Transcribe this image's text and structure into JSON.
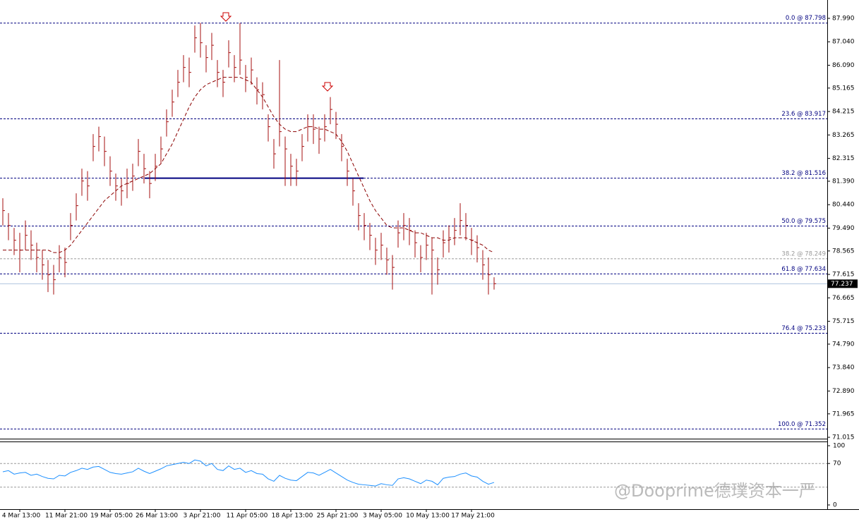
{
  "chart_data": {
    "type": "ohlc",
    "categories": [
      null,
      null,
      null,
      "4 Mar 13:00",
      null,
      null,
      null,
      null,
      null,
      null,
      null,
      "11 Mar 21:00",
      null,
      null,
      null,
      null,
      null,
      null,
      null,
      "19 Mar 05:00",
      null,
      null,
      null,
      null,
      null,
      null,
      null,
      "26 Mar 13:00",
      null,
      null,
      null,
      null,
      null,
      null,
      null,
      "3 Apr 21:00",
      null,
      null,
      null,
      null,
      null,
      null,
      null,
      "11 Apr 05:00",
      null,
      null,
      null,
      null,
      null,
      null,
      null,
      "18 Apr 13:00",
      null,
      null,
      null,
      null,
      null,
      null,
      null,
      "25 Apr 21:00",
      null,
      null,
      null,
      null,
      null,
      null,
      null,
      "3 May 05:00",
      null,
      null,
      null,
      null,
      null,
      null,
      null,
      "10 May 13:00",
      null,
      null,
      null,
      null,
      null,
      null,
      null,
      "17 May 21:00",
      null,
      null,
      null,
      null
    ],
    "high": [
      80.7,
      80.1,
      79.5,
      79.3,
      79.8,
      79.4,
      78.9,
      78.6,
      78.2,
      78.0,
      78.8,
      78.7,
      80.1,
      80.9,
      81.9,
      81.8,
      83.3,
      83.6,
      83.2,
      82.4,
      81.7,
      81.5,
      81.9,
      82.1,
      83.1,
      82.5,
      81.8,
      82.5,
      83.2,
      84.3,
      85.1,
      85.9,
      86.5,
      86.4,
      87.7,
      87.8,
      86.9,
      87.4,
      86.3,
      85.9,
      87.1,
      86.5,
      87.8,
      86.1,
      86.4,
      85.6,
      85.4,
      84.1,
      83.1,
      86.3,
      83.2,
      82.5,
      82.3,
      83.3,
      84.1,
      84.1,
      83.6,
      84.1,
      84.8,
      84.2,
      83.3,
      82.3,
      81.5,
      80.5,
      80.1,
      79.7,
      79.1,
      79.3,
      78.7,
      78.4,
      79.8,
      80.1,
      79.9,
      79.4,
      78.8,
      79.3,
      79.1,
      78.3,
      79.4,
      79.6,
      79.9,
      80.5,
      80.1,
      79.5,
      79.2,
      78.6,
      78.3,
      77.5
    ],
    "low": [
      79.6,
      79.0,
      78.4,
      77.7,
      78.6,
      78.2,
      77.7,
      77.4,
      76.9,
      76.8,
      77.7,
      77.5,
      79.0,
      79.8,
      80.8,
      80.6,
      82.2,
      82.6,
      82.0,
      81.2,
      80.6,
      80.4,
      80.7,
      81.0,
      82.0,
      81.3,
      80.7,
      81.4,
      82.1,
      83.2,
      84.0,
      84.8,
      85.4,
      85.2,
      86.6,
      86.4,
      85.8,
      86.3,
      85.2,
      84.8,
      86.0,
      85.4,
      85.7,
      85.0,
      85.3,
      84.5,
      84.3,
      83.0,
      81.9,
      82.8,
      81.2,
      81.2,
      81.2,
      82.2,
      83.0,
      82.9,
      82.5,
      83.0,
      83.7,
      83.1,
      82.2,
      81.2,
      80.4,
      79.4,
      79.0,
      78.6,
      78.0,
      78.2,
      77.6,
      77.0,
      78.7,
      79.0,
      78.8,
      78.3,
      77.7,
      78.2,
      76.8,
      77.2,
      78.3,
      78.5,
      78.8,
      79.2,
      79.0,
      78.4,
      78.1,
      77.4,
      76.8,
      77.0
    ],
    "close": [
      80.2,
      79.6,
      79.0,
      78.6,
      79.2,
      78.8,
      78.3,
      78.0,
      77.6,
      77.4,
      78.3,
      78.1,
      79.6,
      80.4,
      81.4,
      81.2,
      82.8,
      83.2,
      82.6,
      81.8,
      81.2,
      81.0,
      81.3,
      81.6,
      82.6,
      81.9,
      81.3,
      82.0,
      82.7,
      83.8,
      84.6,
      85.4,
      86.0,
      85.8,
      87.2,
      87.0,
      86.4,
      86.9,
      85.8,
      85.4,
      86.6,
      86.0,
      86.3,
      85.6,
      85.9,
      85.1,
      84.9,
      83.6,
      82.5,
      83.4,
      82.7,
      82.0,
      81.8,
      82.8,
      83.6,
      83.5,
      83.1,
      83.6,
      84.3,
      83.7,
      82.8,
      81.8,
      81.0,
      80.0,
      79.6,
      79.2,
      78.6,
      78.8,
      78.2,
      77.9,
      79.3,
      79.6,
      79.4,
      78.9,
      78.3,
      78.8,
      78.6,
      77.8,
      78.9,
      79.1,
      79.4,
      79.8,
      79.6,
      79.0,
      78.7,
      78.0,
      77.6,
      77.24
    ],
    "bar_color": "#a50f0f",
    "ma": [
      78.6,
      78.6,
      78.6,
      78.6,
      78.6,
      78.6,
      78.6,
      78.6,
      78.6,
      78.5,
      78.5,
      78.6,
      78.8,
      79.1,
      79.4,
      79.7,
      80.0,
      80.3,
      80.6,
      80.8,
      81.0,
      81.2,
      81.3,
      81.4,
      81.5,
      81.6,
      81.7,
      81.9,
      82.1,
      82.5,
      82.9,
      83.4,
      83.9,
      84.4,
      84.8,
      85.1,
      85.3,
      85.4,
      85.5,
      85.6,
      85.6,
      85.6,
      85.6,
      85.5,
      85.4,
      85.1,
      84.8,
      84.4,
      84.0,
      83.7,
      83.5,
      83.4,
      83.4,
      83.5,
      83.6,
      83.6,
      83.5,
      83.5,
      83.4,
      83.3,
      83.0,
      82.6,
      82.1,
      81.6,
      81.1,
      80.6,
      80.2,
      79.9,
      79.6,
      79.5,
      79.5,
      79.5,
      79.4,
      79.3,
      79.3,
      79.2,
      79.1,
      79.1,
      79.0,
      79.0,
      79.1,
      79.1,
      79.1,
      79.0,
      78.9,
      78.8,
      78.6,
      78.5
    ],
    "ma_color": "#8b0000",
    "ylim": [
      70.96,
      88.59
    ],
    "yticks": [
      {
        "value": 87.99,
        "label": "87.990"
      },
      {
        "value": 87.04,
        "label": "87.040"
      },
      {
        "value": 86.09,
        "label": "86.090"
      },
      85.165,
      84.215,
      83.265,
      82.315,
      {
        "value": 81.39,
        "label": "81.390"
      },
      {
        "value": 80.44,
        "label": "80.440"
      },
      {
        "value": 79.49,
        "label": "79.490"
      },
      78.565,
      77.615,
      76.665,
      75.715,
      {
        "value": 74.79,
        "label": "74.790"
      },
      {
        "value": 73.84,
        "label": "73.840"
      },
      {
        "value": 72.89,
        "label": "72.890"
      },
      71.965,
      71.015
    ],
    "fib": [
      {
        "label": "0.0 @ 87.798",
        "value": 87.798,
        "color": "#000080"
      },
      {
        "label": "23.6 @ 83.917",
        "value": 83.917,
        "color": "#000080"
      },
      {
        "label": "38.2 @ 81.516",
        "value": 81.516,
        "color": "#000080"
      },
      {
        "label": "50.0 @ 79.575",
        "value": 79.575,
        "color": "#000080"
      },
      {
        "label": "38.2 @ 78.249",
        "value": 78.249,
        "color": "#9a9a9a"
      },
      {
        "label": "61.8 @ 77.634",
        "value": 77.634,
        "color": "#000080"
      },
      {
        "label": "76.4 @ 75.233",
        "value": 75.233,
        "color": "#000080"
      },
      {
        "label": "100.0 @ 71.352",
        "value": 71.352,
        "color": "#000080"
      }
    ],
    "current_price": {
      "label": "77.237",
      "value": 77.237
    },
    "rsi": {
      "values": [
        56,
        58,
        52,
        54,
        55,
        50,
        52,
        48,
        45,
        44,
        50,
        49,
        55,
        58,
        62,
        60,
        64,
        65,
        60,
        55,
        53,
        52,
        54,
        56,
        62,
        57,
        53,
        57,
        61,
        66,
        68,
        70,
        72,
        70,
        76,
        74,
        66,
        70,
        60,
        58,
        66,
        60,
        62,
        55,
        58,
        53,
        52,
        44,
        40,
        50,
        45,
        42,
        41,
        48,
        55,
        54,
        50,
        55,
        60,
        54,
        48,
        42,
        38,
        35,
        34,
        33,
        32,
        36,
        34,
        33,
        44,
        46,
        44,
        40,
        36,
        42,
        40,
        34,
        45,
        47,
        48,
        52,
        54,
        49,
        47,
        40,
        35,
        38
      ],
      "color": "#1e90ff",
      "ylim": [
        0,
        100
      ],
      "yticks": [
        100,
        70,
        0
      ],
      "levels": [
        70,
        30
      ]
    },
    "watermark": "@Dooprime德璞资本一严"
  }
}
